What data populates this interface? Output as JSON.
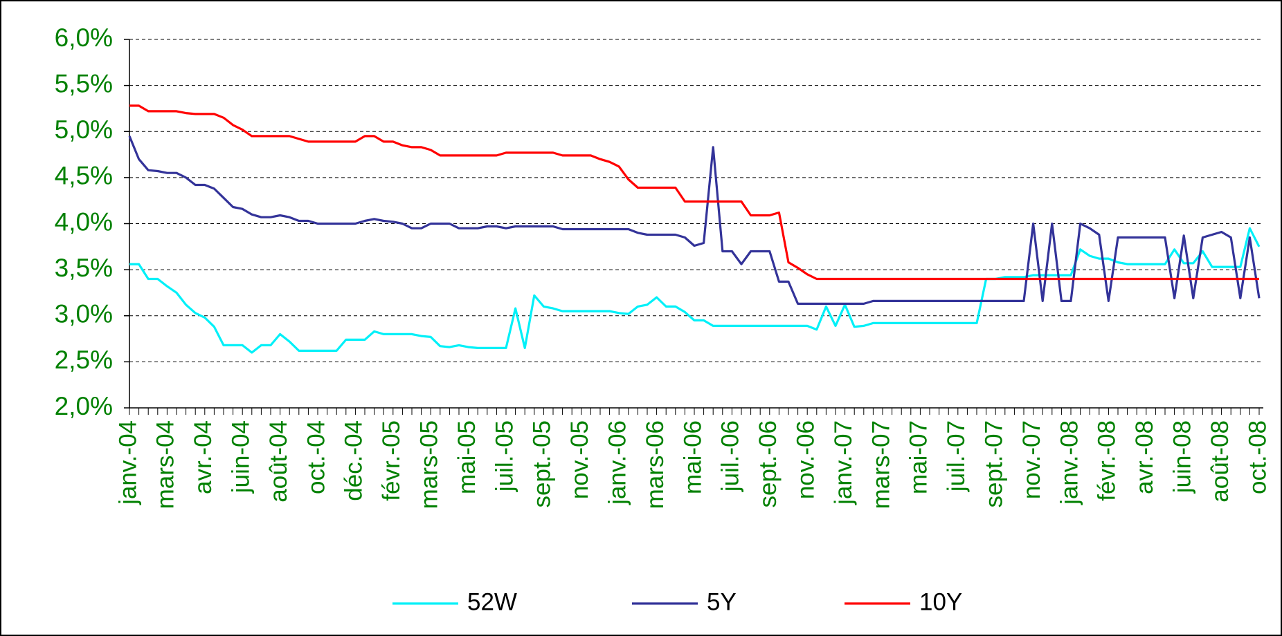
{
  "chart_data": {
    "type": "line",
    "categories": [
      "janv.-04",
      null,
      null,
      null,
      "mars-04",
      null,
      null,
      null,
      "avr.-04",
      null,
      null,
      null,
      "juin-04",
      null,
      null,
      null,
      "août-04",
      null,
      null,
      null,
      "oct.-04",
      null,
      null,
      null,
      "déc.-04",
      null,
      null,
      null,
      "févr.-05",
      null,
      null,
      null,
      "mars-05",
      null,
      null,
      null,
      "mai-05",
      null,
      null,
      null,
      "juil.-05",
      null,
      null,
      null,
      "sept.-05",
      null,
      null,
      null,
      "nov.-05",
      null,
      null,
      null,
      "janv.-06",
      null,
      null,
      null,
      "mars-06",
      null,
      null,
      null,
      "mai-06",
      null,
      null,
      null,
      "juil.-06",
      null,
      null,
      null,
      "sept.-06",
      null,
      null,
      null,
      "nov.-06",
      null,
      null,
      null,
      "janv.-07",
      null,
      null,
      null,
      "mars-07",
      null,
      null,
      null,
      "mai-07",
      null,
      null,
      null,
      "juil.-07",
      null,
      null,
      null,
      "sept.-07",
      null,
      null,
      null,
      "nov.-07",
      null,
      null,
      null,
      "janv.-08",
      null,
      null,
      null,
      "févr.-08",
      null,
      null,
      null,
      "avr.-08",
      null,
      null,
      null,
      "juin-08",
      null,
      null,
      null,
      "août-08",
      null,
      null,
      null,
      "oct.-08"
    ],
    "series": [
      {
        "name": "52W",
        "color": "#00f0f8",
        "values": [
          3.56,
          3.56,
          3.4,
          3.4,
          3.32,
          3.25,
          3.12,
          3.03,
          2.98,
          2.88,
          2.68,
          2.68,
          2.68,
          2.6,
          2.68,
          2.68,
          2.8,
          2.72,
          2.62,
          2.62,
          2.62,
          2.62,
          2.62,
          2.74,
          2.74,
          2.74,
          2.83,
          2.8,
          2.8,
          2.8,
          2.8,
          2.78,
          2.77,
          2.67,
          2.66,
          2.68,
          2.66,
          2.65,
          2.65,
          2.65,
          2.65,
          3.08,
          2.65,
          3.22,
          3.1,
          3.08,
          3.05,
          3.05,
          3.05,
          3.05,
          3.05,
          3.05,
          3.03,
          3.02,
          3.1,
          3.12,
          3.2,
          3.1,
          3.1,
          3.04,
          2.95,
          2.95,
          2.89,
          2.89,
          2.89,
          2.89,
          2.89,
          2.89,
          2.89,
          2.89,
          2.89,
          2.89,
          2.89,
          2.85,
          3.1,
          2.89,
          3.12,
          2.88,
          2.89,
          2.92,
          2.92,
          2.92,
          2.92,
          2.92,
          2.92,
          2.92,
          2.92,
          2.92,
          2.92,
          2.92,
          2.92,
          3.4,
          3.4,
          3.42,
          3.42,
          3.42,
          3.44,
          3.44,
          3.44,
          3.44,
          3.44,
          3.72,
          3.65,
          3.62,
          3.62,
          3.58,
          3.56,
          3.56,
          3.56,
          3.56,
          3.56,
          3.72,
          3.57,
          3.57,
          3.7,
          3.53,
          3.53,
          3.53,
          3.53,
          3.95,
          3.75
        ]
      },
      {
        "name": "5Y",
        "color": "#333399",
        "values": [
          4.95,
          4.7,
          4.58,
          4.57,
          4.55,
          4.55,
          4.5,
          4.42,
          4.42,
          4.38,
          4.28,
          4.18,
          4.16,
          4.1,
          4.07,
          4.07,
          4.09,
          4.07,
          4.03,
          4.03,
          4.0,
          4.0,
          4.0,
          4.0,
          4.0,
          4.03,
          4.05,
          4.03,
          4.02,
          4.0,
          3.95,
          3.95,
          4.0,
          4.0,
          4.0,
          3.95,
          3.95,
          3.95,
          3.97,
          3.97,
          3.95,
          3.97,
          3.97,
          3.97,
          3.97,
          3.97,
          3.94,
          3.94,
          3.94,
          3.94,
          3.94,
          3.94,
          3.94,
          3.94,
          3.9,
          3.88,
          3.88,
          3.88,
          3.88,
          3.85,
          3.76,
          3.79,
          4.83,
          3.7,
          3.7,
          3.56,
          3.7,
          3.7,
          3.7,
          3.37,
          3.37,
          3.13,
          3.13,
          3.13,
          3.13,
          3.13,
          3.13,
          3.13,
          3.13,
          3.16,
          3.16,
          3.16,
          3.16,
          3.16,
          3.16,
          3.16,
          3.16,
          3.16,
          3.16,
          3.16,
          3.16,
          3.16,
          3.16,
          3.16,
          3.16,
          3.16,
          4.0,
          3.16,
          4.0,
          3.16,
          3.16,
          4.0,
          3.95,
          3.88,
          3.16,
          3.85,
          3.85,
          3.85,
          3.85,
          3.85,
          3.85,
          3.19,
          3.87,
          3.19,
          3.85,
          3.88,
          3.91,
          3.85,
          3.19,
          3.85,
          3.19
        ]
      },
      {
        "name": "10Y",
        "color": "#ff0000",
        "values": [
          5.28,
          5.28,
          5.22,
          5.22,
          5.22,
          5.22,
          5.2,
          5.19,
          5.19,
          5.19,
          5.15,
          5.07,
          5.02,
          4.95,
          4.95,
          4.95,
          4.95,
          4.95,
          4.92,
          4.89,
          4.89,
          4.89,
          4.89,
          4.89,
          4.89,
          4.95,
          4.95,
          4.89,
          4.89,
          4.85,
          4.83,
          4.83,
          4.8,
          4.74,
          4.74,
          4.74,
          4.74,
          4.74,
          4.74,
          4.74,
          4.77,
          4.77,
          4.77,
          4.77,
          4.77,
          4.77,
          4.74,
          4.74,
          4.74,
          4.74,
          4.7,
          4.67,
          4.62,
          4.48,
          4.39,
          4.39,
          4.39,
          4.39,
          4.39,
          4.24,
          4.24,
          4.24,
          4.24,
          4.24,
          4.24,
          4.24,
          4.09,
          4.09,
          4.09,
          4.12,
          3.58,
          3.52,
          3.45,
          3.4,
          3.4,
          3.4,
          3.4,
          3.4,
          3.4,
          3.4,
          3.4,
          3.4,
          3.4,
          3.4,
          3.4,
          3.4,
          3.4,
          3.4,
          3.4,
          3.4,
          3.4,
          3.4,
          3.4,
          3.4,
          3.4,
          3.4,
          3.4,
          3.4,
          3.4,
          3.4,
          3.4,
          3.4,
          3.4,
          3.4,
          3.4,
          3.4,
          3.4,
          3.4,
          3.4,
          3.4,
          3.4,
          3.4,
          3.4,
          3.4,
          3.4,
          3.4,
          3.4,
          3.4,
          3.4,
          3.4,
          3.4
        ]
      }
    ],
    "ylim": [
      2.0,
      6.0
    ],
    "yticks": [
      {
        "value": 2.0,
        "label": "2,0%"
      },
      {
        "value": 2.5,
        "label": "2,5%"
      },
      {
        "value": 3.0,
        "label": "3,0%"
      },
      {
        "value": 3.5,
        "label": "3,5%"
      },
      {
        "value": 4.0,
        "label": "4,0%"
      },
      {
        "value": 4.5,
        "label": "4,5%"
      },
      {
        "value": 5.0,
        "label": "5,0%"
      },
      {
        "value": 5.5,
        "label": "5,5%"
      },
      {
        "value": 6.0,
        "label": "6,0%"
      }
    ],
    "grid": true,
    "legend": "bottom"
  }
}
